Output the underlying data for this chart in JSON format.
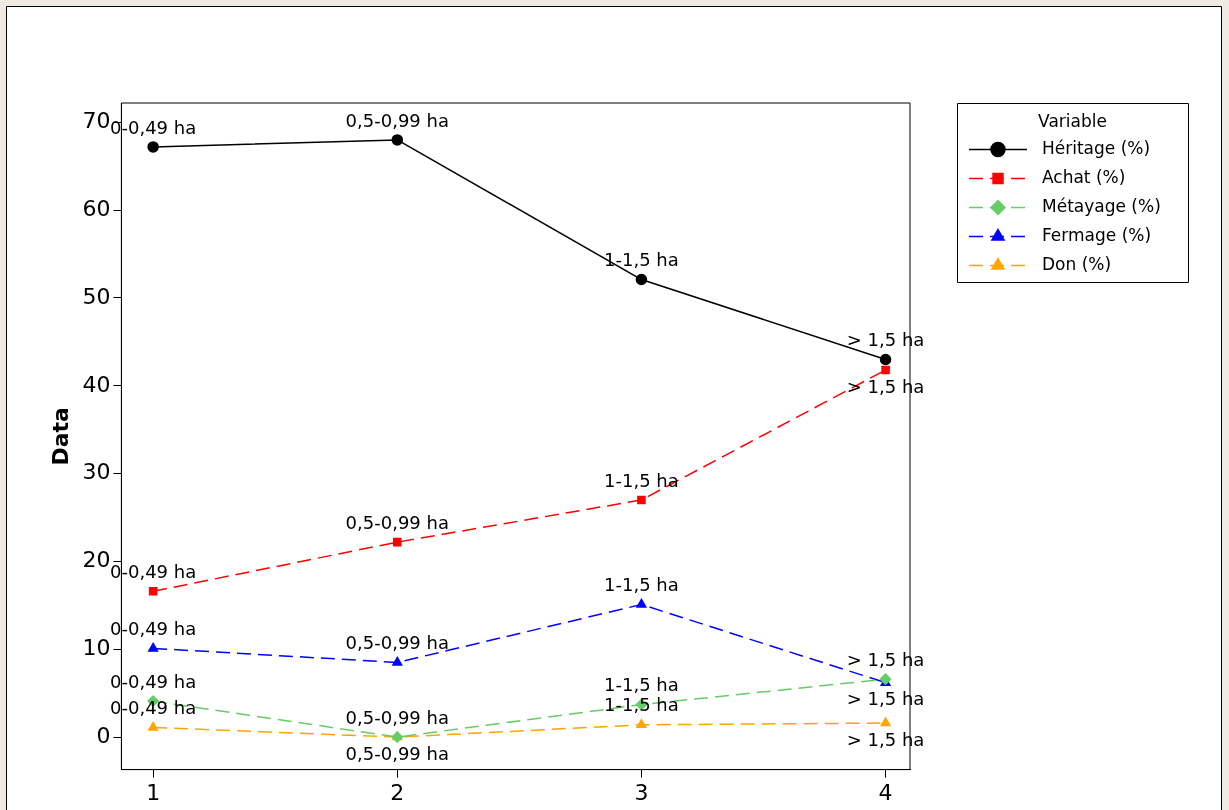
{
  "chart_data": {
    "type": "line",
    "ylabel": "Data",
    "legend_title": "Variable",
    "legend": "top right",
    "grid": false,
    "x": [
      1,
      2,
      3,
      4
    ],
    "xlim": [
      0.87,
      4.1
    ],
    "xticks": [
      1,
      2,
      3,
      4
    ],
    "ylim": [
      -3.7,
      72.2
    ],
    "yticks": [
      0,
      10,
      20,
      30,
      40,
      50,
      60,
      70
    ],
    "series": [
      {
        "name": "Héritage (%)",
        "color": "#000000",
        "marker": "circle",
        "line_style": "solid",
        "values": [
          67.2,
          68.0,
          52.1,
          43.0
        ]
      },
      {
        "name": "Achat (%)",
        "color": "#ff0000",
        "marker": "square",
        "line_style": "dashed",
        "values": [
          16.6,
          22.2,
          27.0,
          41.8
        ]
      },
      {
        "name": "Métayage (%)",
        "color": "#66cc66",
        "marker": "diamond",
        "line_style": "dashed",
        "values": [
          4.1,
          0.0,
          3.7,
          6.6
        ]
      },
      {
        "name": "Fermage (%)",
        "color": "#0000ff",
        "marker": "triangle",
        "line_style": "dashed",
        "values": [
          10.1,
          8.5,
          15.1,
          6.2
        ]
      },
      {
        "name": "Don (%)",
        "color": "#ffa500",
        "marker": "triangle",
        "line_style": "dashed",
        "values": [
          1.1,
          0.0,
          1.4,
          1.6
        ]
      }
    ],
    "annotations": [
      {
        "text": "0-0,49 ha",
        "x": 1,
        "y": 67.2
      },
      {
        "text": "0,5-0,99 ha",
        "x": 2,
        "y": 68.0
      },
      {
        "text": "1-1,5 ha",
        "x": 3,
        "y": 52.1
      },
      {
        "text": "> 1,5 ha",
        "x": 4,
        "y": 43.0
      },
      {
        "text": "0-0,49 ha",
        "x": 1,
        "y": 16.6
      },
      {
        "text": "0,5-0,99 ha",
        "x": 2,
        "y": 22.2
      },
      {
        "text": "1-1,5 ha",
        "x": 3,
        "y": 27.0
      },
      {
        "text": "> 1,5 ha",
        "x": 4,
        "y": 41.8
      },
      {
        "text": "0-0,49 ha",
        "x": 1,
        "y": 4.1
      },
      {
        "text": "0,5-0,99 ha",
        "x": 2,
        "y": 0.0
      },
      {
        "text": "1-1,5 ha",
        "x": 3,
        "y": 3.7
      },
      {
        "text": "> 1,5 ha",
        "x": 4,
        "y": 6.6
      },
      {
        "text": "0-0,49 ha",
        "x": 1,
        "y": 10.1
      },
      {
        "text": "0,5-0,99 ha",
        "x": 2,
        "y": 8.5
      },
      {
        "text": "1-1,5 ha",
        "x": 3,
        "y": 15.1
      },
      {
        "text": "> 1,5 ha",
        "x": 4,
        "y": 6.2
      },
      {
        "text": "0-0,49 ha",
        "x": 1,
        "y": 1.1
      },
      {
        "text": "0,5-0,99 ha",
        "x": 2,
        "y": 0.0
      },
      {
        "text": "1-1,5 ha",
        "x": 3,
        "y": 1.4
      },
      {
        "text": "> 1,5 ha",
        "x": 4,
        "y": 1.6
      }
    ]
  }
}
